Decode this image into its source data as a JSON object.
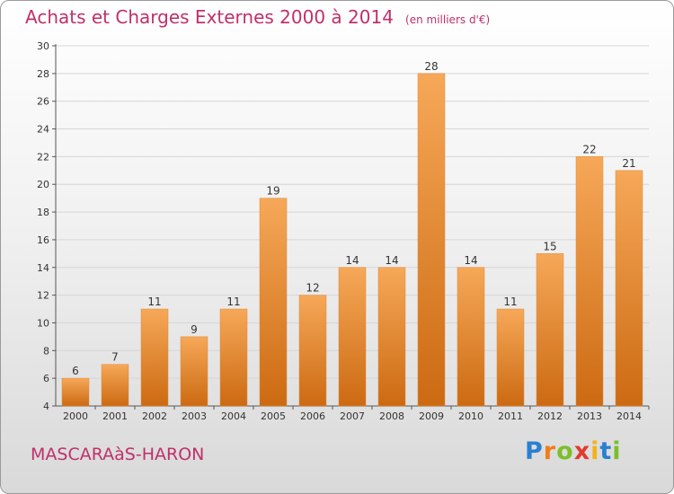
{
  "header": {
    "title": "Achats et Charges Externes 2000 à 2014",
    "subtitle": "(en milliers d'€)"
  },
  "footer": {
    "place": "MASCARAàS-HARON",
    "logo": "Proxiti"
  },
  "colors": {
    "title": "#c0306a",
    "bar_light": "#f6a858",
    "bar_dark": "#cc6a12"
  },
  "chart_data": {
    "type": "bar",
    "title": "Achats et Charges Externes 2000 à 2014",
    "subtitle": "(en milliers d'€)",
    "xlabel": "",
    "ylabel": "",
    "categories": [
      "2000",
      "2001",
      "2002",
      "2003",
      "2004",
      "2005",
      "2006",
      "2007",
      "2008",
      "2009",
      "2010",
      "2011",
      "2012",
      "2013",
      "2014"
    ],
    "values": [
      6,
      7,
      11,
      9,
      11,
      19,
      12,
      14,
      14,
      28,
      14,
      11,
      15,
      22,
      21
    ],
    "ylim": [
      4,
      30
    ],
    "yticks": [
      4,
      6,
      8,
      10,
      12,
      14,
      16,
      18,
      20,
      22,
      24,
      26,
      28,
      30
    ],
    "grid": true
  }
}
